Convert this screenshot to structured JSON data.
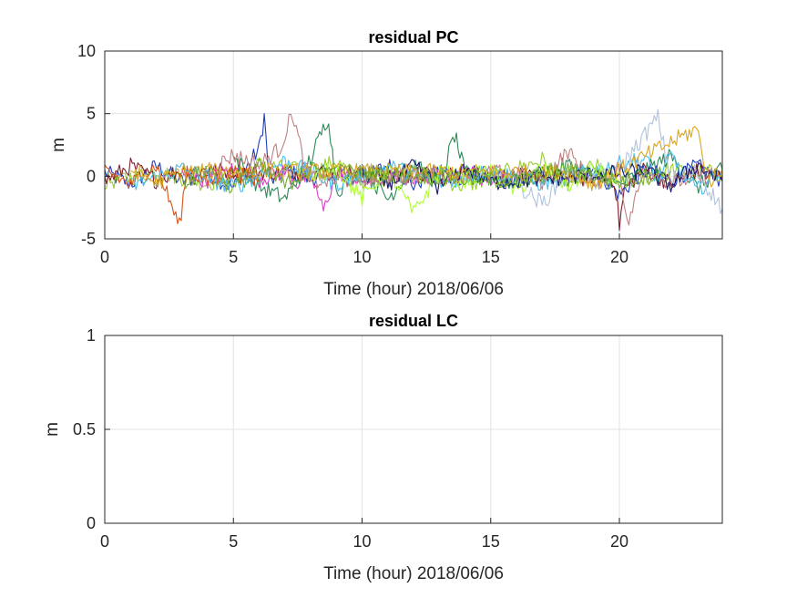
{
  "chart_data": [
    {
      "type": "line",
      "title": "residual PC",
      "xlabel": "Time (hour)  2018/06/06",
      "ylabel": "m",
      "xlim": [
        0,
        24
      ],
      "ylim": [
        -5,
        10
      ],
      "xticks": [
        0,
        5,
        10,
        15,
        20
      ],
      "yticks": [
        -5,
        0,
        5,
        10
      ],
      "grid": true,
      "legend": "none",
      "series_colors": [
        "#0072BD",
        "#D95319",
        "#EDB120",
        "#7E2F8E",
        "#77AC30",
        "#4DBEEE",
        "#A2142F",
        "#1f3fbf",
        "#e040c8",
        "#9acd32",
        "#2e8b57",
        "#c08080",
        "#00bfbf",
        "#6b8e23",
        "#8b4513",
        "#b0c4de",
        "#ff69b4",
        "#1e90ff",
        "#adff2f",
        "#191970",
        "#daa520",
        "#3cb371"
      ],
      "description_series": [
        {
          "color": "#1f3fbf",
          "points": [
            [
              0,
              0.3
            ],
            [
              1,
              -0.6
            ],
            [
              2,
              0.8
            ],
            [
              3,
              -0.4
            ],
            [
              4,
              0.2
            ],
            [
              5,
              -0.9
            ],
            [
              6,
              2.2
            ],
            [
              6.2,
              4.8
            ],
            [
              6.4,
              -0.5
            ],
            [
              7,
              0.4
            ],
            [
              8,
              -0.2
            ],
            [
              9,
              0.6
            ],
            [
              10,
              -0.3
            ],
            [
              11,
              0.9
            ],
            [
              12,
              -0.7
            ],
            [
              13,
              0.5
            ],
            [
              14,
              -0.2
            ],
            [
              15,
              0.3
            ],
            [
              16,
              -0.8
            ],
            [
              17,
              0.4
            ],
            [
              18,
              -0.5
            ],
            [
              19,
              0.7
            ],
            [
              20,
              -1.5
            ],
            [
              21,
              0.6
            ],
            [
              22,
              -0.4
            ],
            [
              23,
              0.8
            ],
            [
              24,
              -0.3
            ]
          ]
        },
        {
          "color": "#9acd32",
          "points": [
            [
              0,
              -0.5
            ],
            [
              2,
              0.4
            ],
            [
              4,
              -0.6
            ],
            [
              6,
              0.9
            ],
            [
              8,
              0.3
            ],
            [
              9,
              1.2
            ],
            [
              10,
              -0.5
            ],
            [
              12,
              0.4
            ],
            [
              14,
              -0.8
            ],
            [
              16,
              0.6
            ],
            [
              17,
              1.3
            ],
            [
              18,
              -0.7
            ],
            [
              19,
              0.9
            ],
            [
              20,
              -0.4
            ],
            [
              22,
              0.5
            ],
            [
              24,
              0.2
            ]
          ]
        },
        {
          "color": "#7f1f2f",
          "points": [
            [
              0,
              -0.4
            ],
            [
              1,
              0.8
            ],
            [
              2,
              -0.3
            ],
            [
              3,
              0.5
            ],
            [
              19.8,
              -0.2
            ],
            [
              20,
              -3.9
            ],
            [
              20.2,
              -1.0
            ],
            [
              21,
              0.6
            ],
            [
              22,
              -0.6
            ],
            [
              23,
              0.4
            ],
            [
              24,
              -0.2
            ]
          ]
        },
        {
          "color": "#e040c8",
          "points": [
            [
              3,
              0.2
            ],
            [
              4,
              -0.3
            ],
            [
              5,
              0.5
            ],
            [
              6,
              -0.2
            ],
            [
              7,
              0.4
            ],
            [
              7.5,
              -0.6
            ],
            [
              8,
              0.2
            ],
            [
              8.5,
              -2.8
            ],
            [
              9,
              0.4
            ],
            [
              10,
              -0.4
            ],
            [
              14,
              0.3
            ],
            [
              15,
              -0.3
            ],
            [
              15.5,
              0.4
            ]
          ]
        },
        {
          "color": "#2e8b57",
          "points": [
            [
              5,
              1.5
            ],
            [
              6,
              -0.8
            ],
            [
              7,
              -1.8
            ],
            [
              8,
              1.4
            ],
            [
              8.7,
              4.8
            ],
            [
              9,
              -1.2
            ],
            [
              10,
              0.6
            ],
            [
              11,
              -1.8
            ],
            [
              12,
              0.9
            ],
            [
              13,
              -0.6
            ],
            [
              13.6,
              3.3
            ],
            [
              14,
              0.2
            ],
            [
              16,
              -0.5
            ],
            [
              18,
              0.9
            ],
            [
              20,
              -0.7
            ],
            [
              22,
              1.6
            ],
            [
              23,
              -0.9
            ],
            [
              24,
              0.5
            ]
          ]
        },
        {
          "color": "#D95319",
          "points": [
            [
              0,
              0.5
            ],
            [
              1,
              -0.7
            ],
            [
              2,
              0.9
            ],
            [
              2.9,
              -4.0
            ],
            [
              3.2,
              0.6
            ],
            [
              4,
              -0.5
            ],
            [
              5,
              0.3
            ],
            [
              6,
              -0.4
            ]
          ]
        },
        {
          "color": "#c08080",
          "points": [
            [
              4,
              0.4
            ],
            [
              5,
              1.7
            ],
            [
              6,
              0.9
            ],
            [
              6.8,
              2.2
            ],
            [
              7.3,
              5.1
            ],
            [
              7.8,
              0.5
            ],
            [
              8.2,
              -0.4
            ],
            [
              16,
              0.3
            ],
            [
              17,
              -0.4
            ],
            [
              18,
              2.0
            ],
            [
              19,
              -0.8
            ],
            [
              20,
              1.1
            ],
            [
              20.3,
              -4.0
            ],
            [
              21,
              0.7
            ],
            [
              22,
              -0.5
            ],
            [
              24,
              0.3
            ]
          ]
        },
        {
          "color": "#4DBEEE",
          "points": [
            [
              1,
              -0.8
            ],
            [
              3,
              0.6
            ],
            [
              5,
              -0.9
            ],
            [
              7,
              1.2
            ],
            [
              9,
              -0.6
            ],
            [
              11,
              0.8
            ],
            [
              13,
              -0.5
            ],
            [
              15,
              0.4
            ],
            [
              17,
              -0.6
            ],
            [
              19,
              0.5
            ],
            [
              21,
              1.4
            ],
            [
              21.5,
              -0.3
            ],
            [
              22,
              1.6
            ],
            [
              23,
              -1.2
            ],
            [
              24,
              0.6
            ]
          ]
        },
        {
          "color": "#b0c4de",
          "points": [
            [
              16,
              -0.6
            ],
            [
              17,
              -2.2
            ],
            [
              18,
              0.4
            ],
            [
              19,
              -0.5
            ],
            [
              20,
              0.6
            ],
            [
              21.5,
              4.7
            ],
            [
              22,
              -0.3
            ],
            [
              23,
              0.4
            ],
            [
              24,
              -2.6
            ]
          ]
        },
        {
          "color": "#adff2f",
          "points": [
            [
              8,
              -0.4
            ],
            [
              9,
              0.8
            ],
            [
              10,
              -1.8
            ],
            [
              11,
              0.6
            ],
            [
              12,
              -3.0
            ],
            [
              13,
              0.4
            ],
            [
              14,
              -0.3
            ],
            [
              15,
              0.5
            ],
            [
              16,
              -1.2
            ],
            [
              17,
              0.7
            ],
            [
              18,
              -0.8
            ],
            [
              19,
              0.6
            ],
            [
              20,
              -0.4
            ]
          ]
        },
        {
          "color": "#191970",
          "points": [
            [
              10,
              0.3
            ],
            [
              11,
              -0.6
            ],
            [
              12,
              0.8
            ],
            [
              13,
              -0.9
            ],
            [
              14,
              0.7
            ],
            [
              15,
              -0.5
            ],
            [
              21,
              0.4
            ],
            [
              22,
              -0.7
            ],
            [
              23,
              0.9
            ],
            [
              24,
              -0.4
            ]
          ]
        },
        {
          "color": "#daa520",
          "points": [
            [
              1,
              0.6
            ],
            [
              2,
              -0.5
            ],
            [
              3,
              0.4
            ],
            [
              18,
              0.3
            ],
            [
              19,
              -0.6
            ],
            [
              20,
              0.5
            ],
            [
              23,
              3.8
            ],
            [
              23.5,
              -0.4
            ],
            [
              24,
              0.6
            ]
          ]
        },
        {
          "color": "#77AC30",
          "points": [
            [
              3,
              -0.5
            ],
            [
              4,
              0.6
            ],
            [
              5,
              -1.0
            ],
            [
              6,
              0.8
            ],
            [
              7,
              -0.7
            ],
            [
              8,
              0.5
            ],
            [
              16,
              -0.4
            ],
            [
              18,
              0.6
            ],
            [
              20,
              -0.5
            ],
            [
              22,
              0.4
            ]
          ]
        }
      ]
    },
    {
      "type": "line",
      "title": "residual LC",
      "xlabel": "Time (hour)  2018/06/06",
      "ylabel": "m",
      "xlim": [
        0,
        24
      ],
      "ylim": [
        0,
        1
      ],
      "xticks": [
        0,
        5,
        10,
        15,
        20
      ],
      "yticks": [
        0,
        0.5,
        1
      ],
      "grid": true,
      "legend": "none",
      "series": []
    }
  ]
}
